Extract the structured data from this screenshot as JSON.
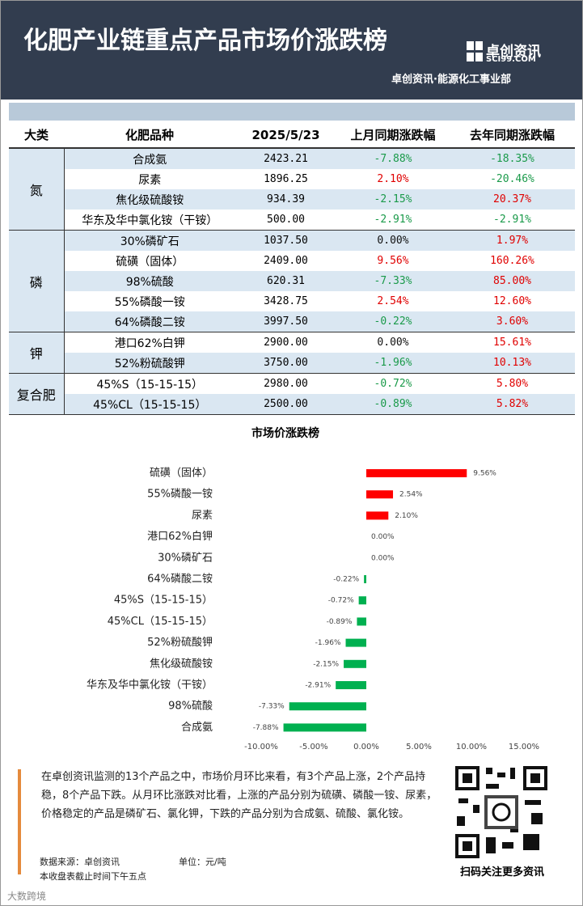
{
  "header": {
    "title": "化肥产业链重点产品市场价涨跌榜",
    "logo_name": "卓创资讯",
    "logo_domain": "SCI99.COM",
    "subtitle": "卓创资讯·能源化工事业部"
  },
  "table": {
    "header": [
      "大类",
      "化肥品种",
      "2025/5/23",
      "上月同期涨跌幅",
      "去年同期涨跌幅"
    ],
    "groups": [
      {
        "name": "氮",
        "rows": [
          [
            "合成氨",
            "2423.21",
            "-7.88%",
            "-18.35%"
          ],
          [
            "尿素",
            "1896.25",
            "2.10%",
            "-20.46%"
          ],
          [
            "焦化级硫酸铵",
            "934.39",
            "-2.15%",
            "20.37%"
          ],
          [
            "华东及华中氯化铵（干铵）",
            "500.00",
            "-2.91%",
            "-2.91%"
          ]
        ]
      },
      {
        "name": "磷",
        "rows": [
          [
            "30%磷矿石",
            "1037.50",
            "0.00%",
            "1.97%"
          ],
          [
            "硫磺（固体）",
            "2409.00",
            "9.56%",
            "160.26%"
          ],
          [
            "98%硫酸",
            "620.31",
            "-7.33%",
            "85.00%"
          ],
          [
            "55%磷酸一铵",
            "3428.75",
            "2.54%",
            "12.60%"
          ],
          [
            "64%磷酸二铵",
            "3997.50",
            "-0.22%",
            "3.60%"
          ]
        ]
      },
      {
        "name": "钾",
        "rows": [
          [
            "港口62%白钾",
            "2900.00",
            "0.00%",
            "15.61%"
          ],
          [
            "52%粉硫酸钾",
            "3750.00",
            "-1.96%",
            "10.13%"
          ]
        ]
      },
      {
        "name": "复合肥",
        "rows": [
          [
            "45%S（15-15-15）",
            "2980.00",
            "-0.72%",
            "5.80%"
          ],
          [
            "45%CL（15-15-15）",
            "2500.00",
            "-0.89%",
            "5.82%"
          ]
        ]
      }
    ]
  },
  "chart_data": {
    "type": "bar",
    "orientation": "horizontal",
    "title": "市场价涨跌榜",
    "categories": [
      "硫磺（固体）",
      "55%磷酸一铵",
      "尿素",
      "港口62%白钾",
      "30%磷矿石",
      "64%磷酸二铵",
      "45%S（15-15-15）",
      "45%CL（15-15-15）",
      "52%粉硫酸钾",
      "焦化级硫酸铵",
      "华东及华中氯化铵（干铵）",
      "98%硫酸",
      "合成氨"
    ],
    "values": [
      9.56,
      2.54,
      2.1,
      0.0,
      0.0,
      -0.22,
      -0.72,
      -0.89,
      -1.96,
      -2.15,
      -2.91,
      -7.33,
      -7.88
    ],
    "value_labels": [
      "9.56%",
      "2.54%",
      "2.10%",
      "0.00%",
      "0.00%",
      "-0.22%",
      "-0.72%",
      "-0.89%",
      "-1.96%",
      "-2.15%",
      "-2.91%",
      "-7.33%",
      "-7.88%"
    ],
    "positive_color": "#ff0000",
    "negative_color": "#00b050",
    "xlim": [
      -10,
      15
    ],
    "xticks": [
      {
        "value": -10,
        "label": "-10.00%"
      },
      {
        "value": -5,
        "label": "-5.00%"
      },
      {
        "value": 0,
        "label": "0.00%"
      },
      {
        "value": 5,
        "label": "5.00%"
      },
      {
        "value": 10,
        "label": "10.00%"
      },
      {
        "value": 15,
        "label": "15.00%"
      }
    ]
  },
  "footer": {
    "summary": "在卓创资讯监测的13个产品之中，市场价月环比来看，有3个产品上涨，2个产品持稳，8个产品下跌。从月环比涨跌对比看，上涨的产品分别为硫磺、磷酸一铵、尿素，价格稳定的产品是磷矿石、氯化钾，下跌的产品分别为合成氨、硫酸、氯化铵。",
    "source": "数据来源：卓创资讯",
    "unit": "单位：元/吨",
    "note": "本收盘表截止时间下午五点",
    "qr_caption": "扫码关注更多资讯",
    "watermark": "大数跨境"
  }
}
